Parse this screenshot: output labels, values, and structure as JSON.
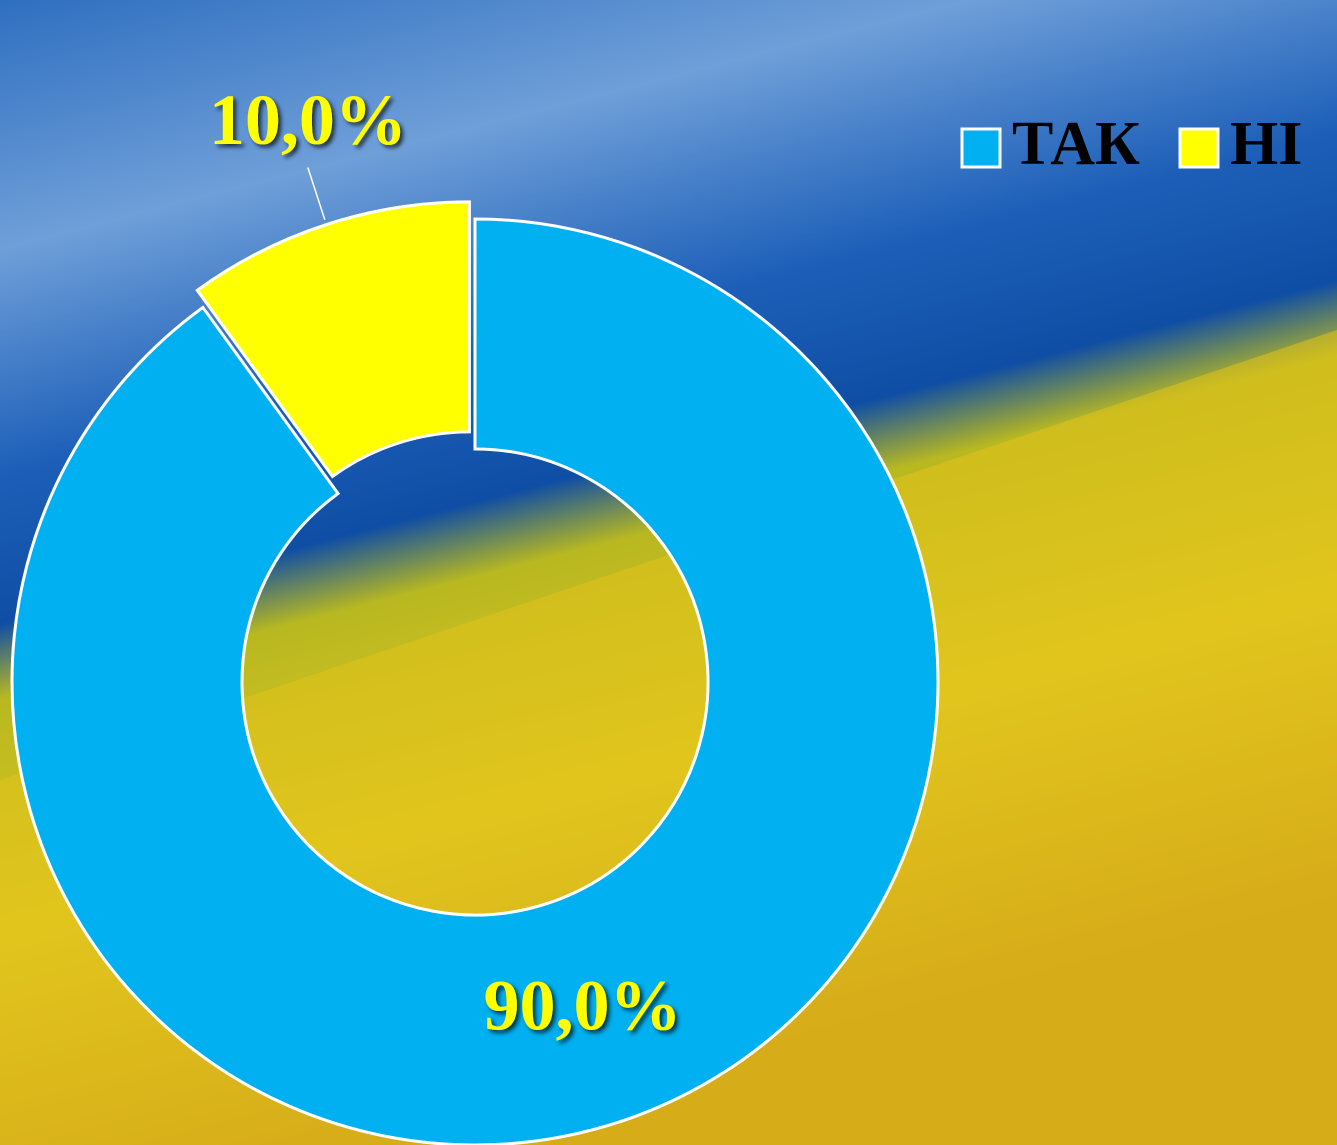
{
  "chart_data": {
    "type": "pie",
    "categories": [
      "ТАК",
      "НІ"
    ],
    "values": [
      90,
      10
    ],
    "value_labels": [
      "90,0%",
      "10,0%"
    ],
    "colors": [
      "#00b0f0",
      "#ffff00"
    ],
    "donut": true,
    "explode": [
      false,
      true
    ],
    "legend": "top-right"
  }
}
